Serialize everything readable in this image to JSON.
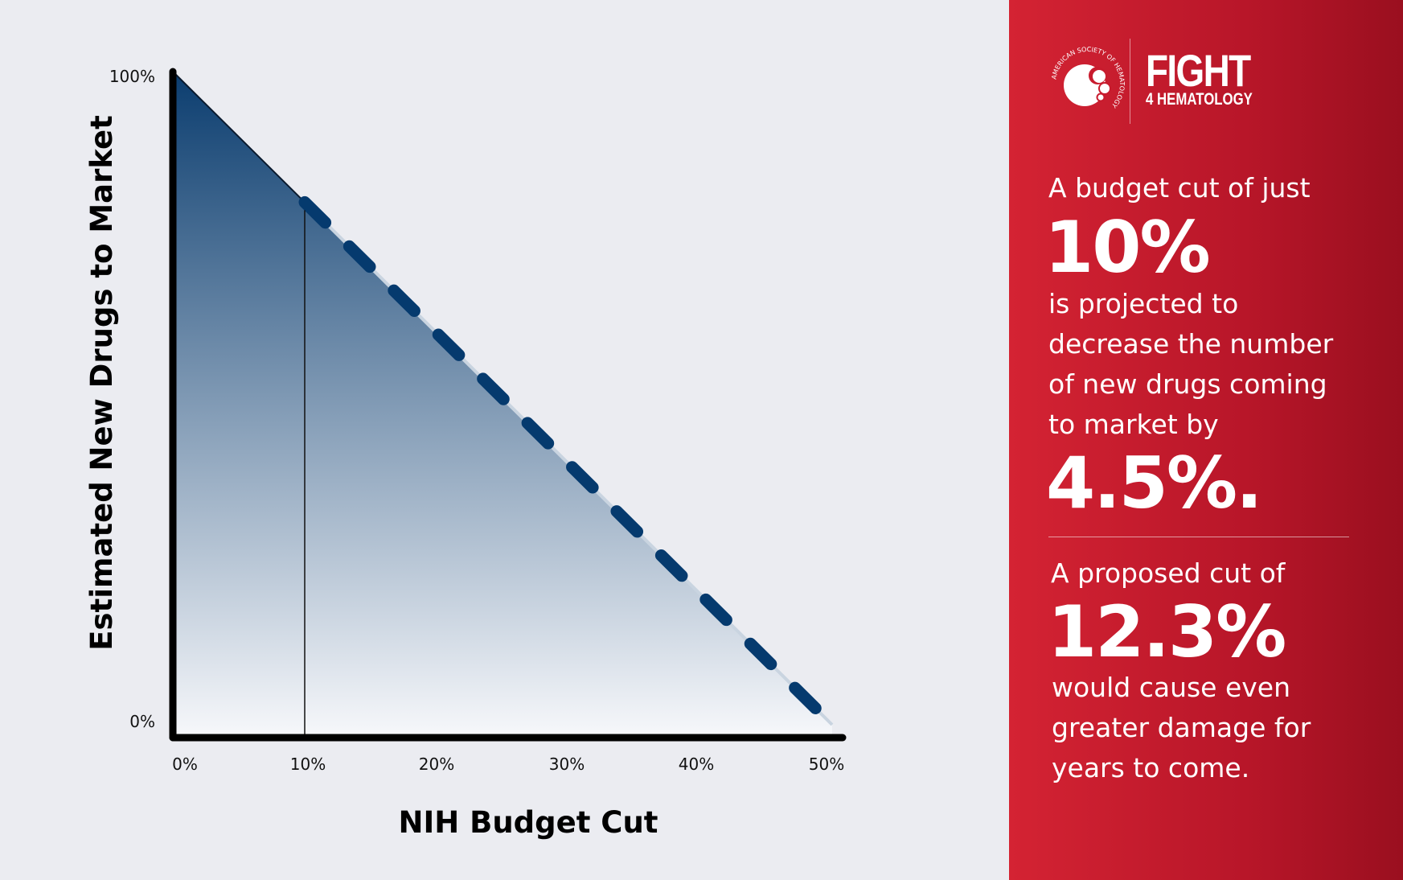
{
  "chart_data": {
    "type": "area",
    "xlabel": "NIH Budget Cut",
    "ylabel": "Estimated New Drugs to Market",
    "x_ticks": [
      "0%",
      "10%",
      "20%",
      "30%",
      "40%",
      "50%"
    ],
    "y_ticks": [
      "100%",
      "0%"
    ],
    "xlim": [
      0,
      50
    ],
    "ylim": [
      0,
      100
    ],
    "line": {
      "x": [
        0,
        50
      ],
      "y": [
        100,
        0
      ]
    },
    "solid_segment": [
      0,
      10
    ],
    "dashed_segment": [
      10,
      50
    ],
    "marker_x": 10,
    "grid": false,
    "colors": {
      "fill_top": "#0b3d6f",
      "fill_bottom": "#f7f8fb",
      "dash": "#053a6e",
      "axis": "#000000"
    }
  },
  "panel": {
    "logo": {
      "ring_text": "AMERICAN SOCIETY OF HEMATOLOGY",
      "title": "FIGHT",
      "subtitle": "4 HEMATOLOGY"
    },
    "intro": "A budget cut of just",
    "cut1": "10%",
    "lines1": [
      "is projected to",
      "decrease the number",
      "of new drugs coming",
      "to market by"
    ],
    "decrease": "4.5%.",
    "intro2": "A proposed cut of",
    "cut2": "12.3%",
    "lines2": [
      "would cause even",
      "greater damage for",
      "years to come."
    ],
    "colors": {
      "red_start": "#d42333",
      "red_end": "#9a0f1f"
    }
  }
}
